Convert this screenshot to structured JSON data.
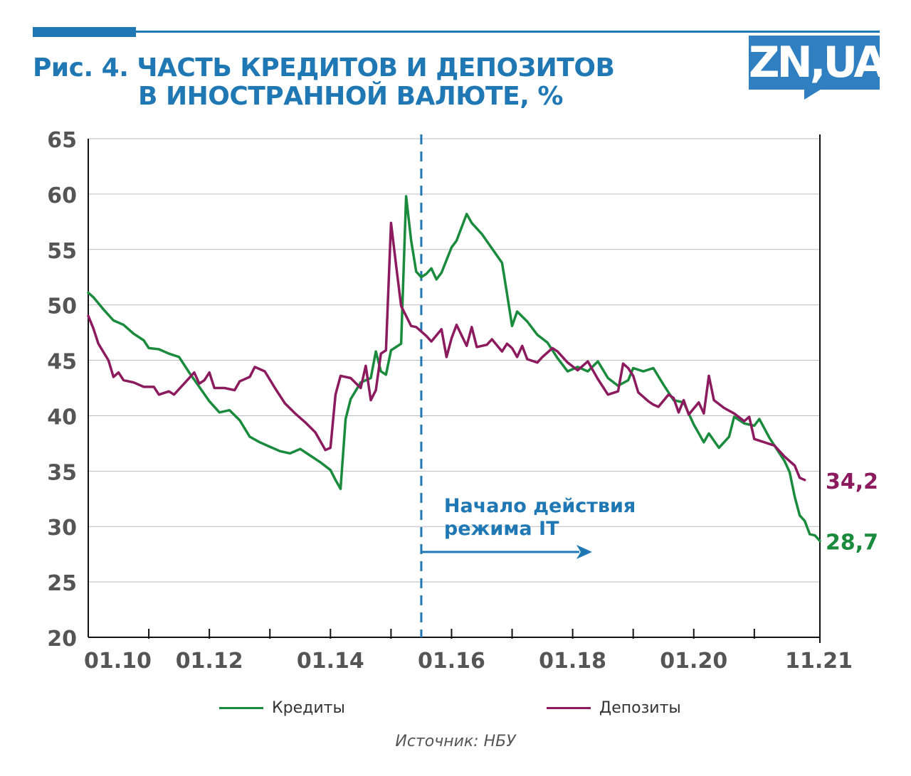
{
  "header": {
    "title_line1": "Рис. 4. ЧАСТЬ КРЕДИТОВ И ДЕПОЗИТОВ",
    "title_line2": "В ИНОСТРАННОЙ ВАЛЮТЕ, %",
    "logo": "ZN,UA"
  },
  "colors": {
    "brand": "#1f78b4",
    "credits": "#1a8a3c",
    "deposits": "#8b1a5e",
    "grid": "#bbbbbb",
    "axis": "#111111",
    "tick_text": "#555555"
  },
  "chart_data": {
    "type": "line",
    "ylim": [
      20,
      65
    ],
    "yticks": [
      "20",
      "25",
      "30",
      "35",
      "40",
      "45",
      "50",
      "55",
      "60",
      "65"
    ],
    "xticks": [
      "01.10",
      "01.12",
      "01.14",
      "01.16",
      "01.18",
      "01.20",
      "11.21"
    ],
    "xlabel": "",
    "ylabel": "",
    "grid": true,
    "legend_position": "bottom",
    "annotation": {
      "text_line1": "Начало действия",
      "text_line2": "режима IT",
      "x": "07.15"
    },
    "series": [
      {
        "name": "Кредиты",
        "end_label": "28,7",
        "points": [
          [
            "01.10",
            51.1
          ],
          [
            "02.10",
            50.7
          ],
          [
            "04.10",
            49.6
          ],
          [
            "06.10",
            48.6
          ],
          [
            "08.10",
            48.2
          ],
          [
            "10.10",
            47.4
          ],
          [
            "12.10",
            46.8
          ],
          [
            "01.11",
            46.1
          ],
          [
            "03.11",
            46.0
          ],
          [
            "05.11",
            45.6
          ],
          [
            "07.11",
            45.3
          ],
          [
            "09.11",
            43.9
          ],
          [
            "11.11",
            42.6
          ],
          [
            "01.12",
            41.3
          ],
          [
            "03.12",
            40.3
          ],
          [
            "05.12",
            40.5
          ],
          [
            "07.12",
            39.6
          ],
          [
            "09.12",
            38.1
          ],
          [
            "11.12",
            37.6
          ],
          [
            "01.13",
            37.2
          ],
          [
            "03.13",
            36.8
          ],
          [
            "05.13",
            36.6
          ],
          [
            "07.13",
            37.0
          ],
          [
            "09.13",
            36.4
          ],
          [
            "11.13",
            35.8
          ],
          [
            "01.14",
            35.1
          ],
          [
            "02.14",
            34.2
          ],
          [
            "03.14",
            33.4
          ],
          [
            "04.14",
            39.7
          ],
          [
            "05.14",
            41.5
          ],
          [
            "07.14",
            43.0
          ],
          [
            "09.14",
            43.4
          ],
          [
            "10.14",
            45.8
          ],
          [
            "11.14",
            44.0
          ],
          [
            "12.14",
            43.7
          ],
          [
            "01.15",
            45.9
          ],
          [
            "02.15",
            46.2
          ],
          [
            "03.15",
            46.5
          ],
          [
            "04.15",
            59.8
          ],
          [
            "05.15",
            55.8
          ],
          [
            "06.15",
            53.0
          ],
          [
            "07.15",
            52.5
          ],
          [
            "08.15",
            52.8
          ],
          [
            "09.15",
            53.3
          ],
          [
            "10.15",
            52.3
          ],
          [
            "11.15",
            52.9
          ],
          [
            "01.16",
            55.2
          ],
          [
            "02.16",
            55.8
          ],
          [
            "04.16",
            58.2
          ],
          [
            "05.16",
            57.4
          ],
          [
            "07.16",
            56.4
          ],
          [
            "09.16",
            55.1
          ],
          [
            "11.16",
            53.8
          ],
          [
            "12.16",
            51.0
          ],
          [
            "01.17",
            48.1
          ],
          [
            "02.17",
            49.4
          ],
          [
            "04.17",
            48.5
          ],
          [
            "06.17",
            47.3
          ],
          [
            "08.17",
            46.6
          ],
          [
            "10.17",
            45.2
          ],
          [
            "12.17",
            44.0
          ],
          [
            "02.18",
            44.4
          ],
          [
            "04.18",
            44.0
          ],
          [
            "06.18",
            44.9
          ],
          [
            "08.18",
            43.4
          ],
          [
            "10.18",
            42.7
          ],
          [
            "12.18",
            43.2
          ],
          [
            "01.19",
            44.3
          ],
          [
            "03.19",
            44.0
          ],
          [
            "05.19",
            44.3
          ],
          [
            "07.19",
            42.8
          ],
          [
            "09.19",
            41.4
          ],
          [
            "11.19",
            41.2
          ],
          [
            "01.20",
            39.2
          ],
          [
            "03.20",
            37.6
          ],
          [
            "04.20",
            38.4
          ],
          [
            "06.20",
            37.1
          ],
          [
            "08.20",
            38.1
          ],
          [
            "09.20",
            39.9
          ],
          [
            "11.20",
            39.3
          ],
          [
            "01.21",
            39.1
          ],
          [
            "02.21",
            39.7
          ],
          [
            "04.21",
            38.0
          ],
          [
            "06.21",
            36.6
          ],
          [
            "07.21",
            35.9
          ],
          [
            "08.21",
            34.9
          ],
          [
            "09.21",
            32.7
          ],
          [
            "10.21",
            31.0
          ],
          [
            "11.21",
            30.5
          ],
          [
            "12.21",
            29.3
          ],
          [
            "01.22",
            29.2
          ],
          [
            "02.22",
            28.7
          ]
        ]
      },
      {
        "name": "Депозиты",
        "end_label": "34,2",
        "points": [
          [
            "01.10",
            49.0
          ],
          [
            "02.10",
            47.9
          ],
          [
            "03.10",
            46.5
          ],
          [
            "05.10",
            45.0
          ],
          [
            "06.10",
            43.5
          ],
          [
            "07.10",
            43.9
          ],
          [
            "08.10",
            43.2
          ],
          [
            "10.10",
            43.0
          ],
          [
            "12.10",
            42.6
          ],
          [
            "02.11",
            42.6
          ],
          [
            "03.11",
            41.9
          ],
          [
            "05.11",
            42.2
          ],
          [
            "06.11",
            41.9
          ],
          [
            "08.11",
            42.9
          ],
          [
            "10.11",
            43.9
          ],
          [
            "11.11",
            42.9
          ],
          [
            "12.11",
            43.2
          ],
          [
            "01.12",
            43.9
          ],
          [
            "02.12",
            42.5
          ],
          [
            "04.12",
            42.5
          ],
          [
            "06.12",
            42.3
          ],
          [
            "07.12",
            43.1
          ],
          [
            "09.12",
            43.5
          ],
          [
            "10.12",
            44.4
          ],
          [
            "12.12",
            44.0
          ],
          [
            "02.13",
            42.5
          ],
          [
            "04.13",
            41.1
          ],
          [
            "06.13",
            40.2
          ],
          [
            "08.13",
            39.4
          ],
          [
            "10.13",
            38.5
          ],
          [
            "12.13",
            36.9
          ],
          [
            "01.14",
            37.1
          ],
          [
            "02.14",
            41.9
          ],
          [
            "03.14",
            43.6
          ],
          [
            "05.14",
            43.4
          ],
          [
            "07.14",
            42.5
          ],
          [
            "08.14",
            44.5
          ],
          [
            "09.14",
            41.4
          ],
          [
            "10.14",
            42.3
          ],
          [
            "11.14",
            45.6
          ],
          [
            "12.14",
            45.9
          ],
          [
            "01.15",
            57.4
          ],
          [
            "02.15",
            53.6
          ],
          [
            "03.15",
            49.9
          ],
          [
            "05.15",
            48.1
          ],
          [
            "06.15",
            48.0
          ],
          [
            "08.15",
            47.2
          ],
          [
            "09.15",
            46.7
          ],
          [
            "11.15",
            47.8
          ],
          [
            "12.15",
            45.3
          ],
          [
            "01.16",
            47.0
          ],
          [
            "02.16",
            48.2
          ],
          [
            "04.16",
            46.3
          ],
          [
            "05.16",
            48.0
          ],
          [
            "06.16",
            46.2
          ],
          [
            "08.16",
            46.4
          ],
          [
            "09.16",
            46.9
          ],
          [
            "11.16",
            45.8
          ],
          [
            "12.16",
            46.5
          ],
          [
            "01.17",
            46.1
          ],
          [
            "02.17",
            45.3
          ],
          [
            "03.17",
            46.3
          ],
          [
            "04.17",
            45.1
          ],
          [
            "06.17",
            44.8
          ],
          [
            "07.17",
            45.3
          ],
          [
            "09.17",
            46.1
          ],
          [
            "10.17",
            45.8
          ],
          [
            "12.17",
            44.8
          ],
          [
            "02.18",
            44.1
          ],
          [
            "04.18",
            44.9
          ],
          [
            "06.18",
            43.3
          ],
          [
            "08.18",
            41.9
          ],
          [
            "10.18",
            42.2
          ],
          [
            "11.18",
            44.7
          ],
          [
            "12.18",
            44.3
          ],
          [
            "01.19",
            43.6
          ],
          [
            "02.19",
            42.1
          ],
          [
            "04.19",
            41.3
          ],
          [
            "05.19",
            41.0
          ],
          [
            "06.19",
            40.8
          ],
          [
            "08.19",
            41.9
          ],
          [
            "09.19",
            41.6
          ],
          [
            "10.19",
            40.3
          ],
          [
            "11.19",
            41.4
          ],
          [
            "12.19",
            40.1
          ],
          [
            "02.20",
            41.2
          ],
          [
            "03.20",
            40.2
          ],
          [
            "04.20",
            43.6
          ],
          [
            "05.20",
            41.4
          ],
          [
            "07.20",
            40.7
          ],
          [
            "09.20",
            40.2
          ],
          [
            "11.20",
            39.5
          ],
          [
            "12.20",
            39.9
          ],
          [
            "01.21",
            37.9
          ],
          [
            "03.21",
            37.6
          ],
          [
            "05.21",
            37.3
          ],
          [
            "07.21",
            36.3
          ],
          [
            "09.21",
            35.5
          ],
          [
            "10.21",
            34.4
          ],
          [
            "11.21",
            34.2
          ]
        ]
      }
    ]
  },
  "legend": {
    "credits_label": "Кредиты",
    "deposits_label": "Депозиты"
  },
  "source": "Источник: НБУ"
}
